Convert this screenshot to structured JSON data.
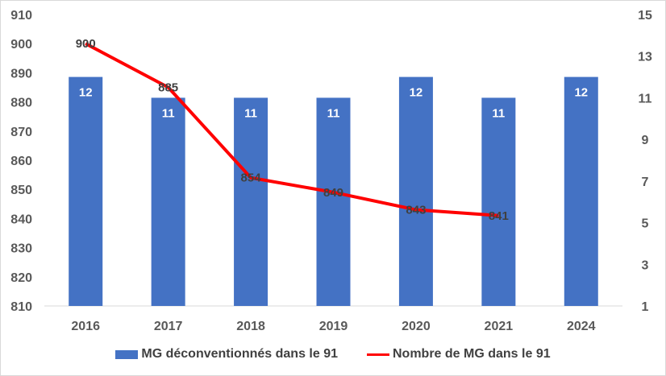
{
  "chart_data": {
    "type": "bar",
    "categories": [
      "2016",
      "2017",
      "2018",
      "2019",
      "2020",
      "2021",
      "2024"
    ],
    "series": [
      {
        "name": "MG déconventionnés dans le 91",
        "chart_type": "bar",
        "axis": "right",
        "color": "#4472c4",
        "values": [
          12,
          11,
          11,
          11,
          12,
          11,
          12
        ],
        "data_labels": [
          "12",
          "11",
          "11",
          "11",
          "12",
          "11",
          "12"
        ]
      },
      {
        "name": "Nombre de MG dans le 91",
        "chart_type": "line",
        "axis": "left",
        "color": "#ff0000",
        "values": [
          900,
          885,
          854,
          849,
          843,
          841,
          null
        ],
        "data_labels": [
          "900",
          "885",
          "854",
          "849",
          "843",
          "841",
          null
        ]
      }
    ],
    "y_left": {
      "ylim": [
        810,
        910
      ],
      "ticks": [
        "810",
        "820",
        "830",
        "840",
        "850",
        "860",
        "870",
        "880",
        "890",
        "900",
        "910"
      ]
    },
    "y_right": {
      "ylim": [
        1,
        15
      ],
      "ticks": [
        "1",
        "3",
        "5",
        "7",
        "9",
        "11",
        "13",
        "15"
      ]
    },
    "grid": false,
    "legend_position": "bottom"
  }
}
